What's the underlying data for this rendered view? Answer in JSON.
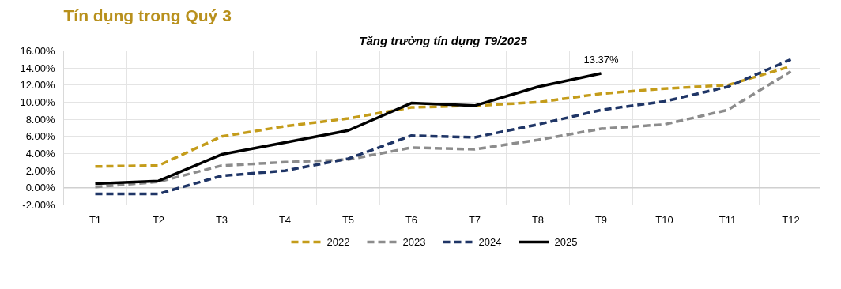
{
  "chart_data": {
    "type": "line",
    "title": "Tín dụng trong Quý 3",
    "subtitle": "Tăng trưởng tín dụng T9/2025",
    "categories": [
      "T1",
      "T2",
      "T3",
      "T4",
      "T5",
      "T6",
      "T7",
      "T8",
      "T9",
      "T10",
      "T11",
      "T12"
    ],
    "series": [
      {
        "name": "2022",
        "color": "#c49c1a",
        "line_style": "dashed",
        "values": [
          2.5,
          2.6,
          6.0,
          7.2,
          8.1,
          9.4,
          9.6,
          10.0,
          11.0,
          11.6,
          12.0,
          14.2
        ]
      },
      {
        "name": "2023",
        "color": "#8c8c8c",
        "line_style": "dashed",
        "values": [
          0.1,
          0.7,
          2.6,
          3.0,
          3.3,
          4.7,
          4.5,
          5.6,
          6.9,
          7.4,
          9.1,
          13.6
        ]
      },
      {
        "name": "2024",
        "color": "#1f3566",
        "line_style": "dashed",
        "values": [
          -0.7,
          -0.7,
          1.4,
          2.0,
          3.4,
          6.1,
          5.9,
          7.4,
          9.1,
          10.1,
          11.8,
          15.0
        ]
      },
      {
        "name": "2025",
        "color": "#000000",
        "line_style": "solid",
        "values": [
          0.5,
          0.8,
          3.9,
          5.3,
          6.7,
          9.9,
          9.6,
          11.8,
          13.37,
          null,
          null,
          null
        ],
        "value_labels": [
          null,
          null,
          null,
          null,
          null,
          null,
          null,
          null,
          "13.37%",
          null,
          null,
          null
        ]
      }
    ],
    "ylim": [
      -2,
      16
    ],
    "yticks": [
      {
        "value": -2,
        "label": "-2.00%"
      },
      {
        "value": 0,
        "label": "0.00%"
      },
      {
        "value": 2,
        "label": "2.00%"
      },
      {
        "value": 4,
        "label": "4.00%"
      },
      {
        "value": 6,
        "label": "6.00%"
      },
      {
        "value": 8,
        "label": "8.00%"
      },
      {
        "value": 10,
        "label": "10.00%"
      },
      {
        "value": 12,
        "label": "12.00%"
      },
      {
        "value": 14,
        "label": "14.00%"
      },
      {
        "value": 16,
        "label": "16.00%"
      }
    ],
    "grid": true,
    "legend": "bottom",
    "marker": "none"
  }
}
